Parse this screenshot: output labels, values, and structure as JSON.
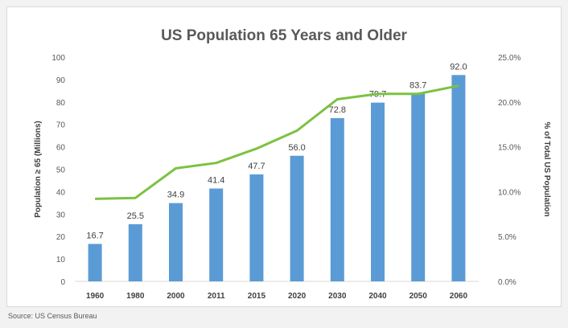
{
  "chart_data": {
    "type": "bar",
    "title": "US Population 65 Years and Older",
    "categories": [
      "1960",
      "1980",
      "2000",
      "2011",
      "2015",
      "2020",
      "2030",
      "2040",
      "2050",
      "2060"
    ],
    "series": [
      {
        "type": "bar",
        "axis": "left",
        "color": "#5b9bd5",
        "values": [
          16.7,
          25.5,
          34.9,
          41.4,
          47.7,
          56.0,
          72.8,
          79.7,
          83.7,
          92.0
        ],
        "labels": [
          "16.7",
          "25.5",
          "34.9",
          "41.4",
          "47.7",
          "56.0",
          "72.8",
          "79.7",
          "83.7",
          "92.0"
        ]
      },
      {
        "type": "line",
        "axis": "right",
        "color": "#7cc242",
        "values": [
          9.2,
          9.3,
          12.6,
          13.2,
          14.8,
          16.8,
          20.3,
          20.9,
          20.9,
          21.8
        ]
      }
    ],
    "y_left": {
      "label": "Population ≥ 65 (Millions)",
      "min": 0,
      "max": 100,
      "ticks": [
        "0",
        "10",
        "20",
        "30",
        "40",
        "50",
        "60",
        "70",
        "80",
        "90",
        "100"
      ]
    },
    "y_right": {
      "label": "% of Total US Population",
      "min": 0,
      "max": 25,
      "ticks": [
        "0.0%",
        "5.0%",
        "10.0%",
        "15.0%",
        "20.0%",
        "25.0%"
      ]
    },
    "grid": false,
    "legend": "none"
  },
  "source": "Source: US Census Bureau"
}
